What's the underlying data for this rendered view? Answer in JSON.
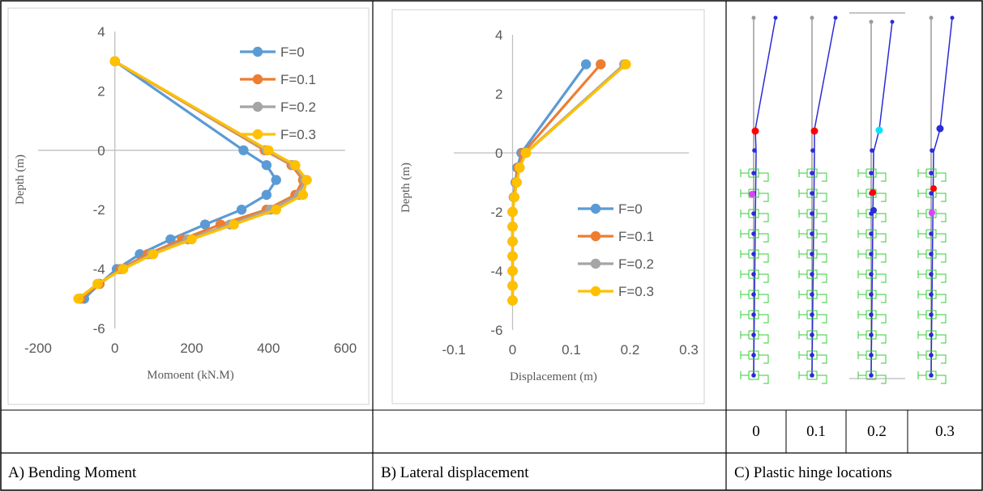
{
  "captions": {
    "a": "A) Bending Moment",
    "b": "B) Lateral displacement",
    "c": "C) Plastic hinge locations"
  },
  "hinge_panel": {
    "labels": [
      "0",
      "0.1",
      "0.2",
      "0.3"
    ]
  },
  "colors": {
    "series": [
      "#5b9bd5",
      "#ed7d31",
      "#a5a5a5",
      "#ffc000"
    ],
    "pile": "#2b2bd8",
    "gray_pile": "#9a9a9a",
    "hinge_red": "#ff0000",
    "hinge_cyan": "#00e5ff",
    "hinge_magenta": "#e040fb",
    "spring_green": "#33cc33"
  },
  "chart_data": [
    {
      "type": "line",
      "title": "",
      "xlabel": "Momoent (kN.M)",
      "ylabel": "Depth (m)",
      "xlim": [
        -200,
        600
      ],
      "ylim": [
        -6,
        4
      ],
      "xticks": [
        "-200",
        "0",
        "200",
        "400",
        "600"
      ],
      "yticks": [
        "4",
        "2",
        "0",
        "-2",
        "-4",
        "-6"
      ],
      "legend_position": "top-right",
      "grid": false,
      "series": [
        {
          "name": "F=0",
          "x": [
            0,
            335,
            395,
            420,
            395,
            330,
            235,
            145,
            65,
            5,
            -40,
            -80
          ],
          "y": [
            3,
            0,
            -0.5,
            -1,
            -1.5,
            -2,
            -2.5,
            -3,
            -3.5,
            -4,
            -4.5,
            -5
          ]
        },
        {
          "name": "F=0.1",
          "x": [
            0,
            390,
            460,
            490,
            470,
            395,
            275,
            175,
            85,
            15,
            -40,
            -90
          ],
          "y": [
            3,
            0,
            -0.5,
            -1,
            -1.5,
            -2,
            -2.5,
            -3,
            -3.5,
            -4,
            -4.5,
            -5
          ]
        },
        {
          "name": "F=0.2",
          "x": [
            0,
            395,
            465,
            495,
            480,
            405,
            300,
            190,
            95,
            20,
            -45,
            -95
          ],
          "y": [
            3,
            0,
            -0.5,
            -1,
            -1.5,
            -2,
            -2.5,
            -3,
            -3.5,
            -4,
            -4.5,
            -5
          ]
        },
        {
          "name": "F=0.3",
          "x": [
            0,
            400,
            470,
            500,
            490,
            420,
            310,
            200,
            100,
            22,
            -45,
            -95
          ],
          "y": [
            3,
            0,
            -0.5,
            -1,
            -1.5,
            -2,
            -2.5,
            -3,
            -3.5,
            -4,
            -4.5,
            -5
          ]
        }
      ]
    },
    {
      "type": "line",
      "title": "",
      "xlabel": "Displacement (m)",
      "ylabel": "Depth (m)",
      "xlim": [
        -0.1,
        0.3
      ],
      "ylim": [
        -6,
        4
      ],
      "xticks": [
        "-0.1",
        "0",
        "0.1",
        "0.2",
        "0.3"
      ],
      "yticks": [
        "4",
        "2",
        "0",
        "-2",
        "-4",
        "-6"
      ],
      "legend_position": "center-right",
      "grid": false,
      "series": [
        {
          "name": "F=0",
          "x": [
            0.125,
            0.015,
            0.008,
            0.005,
            0.002,
            0,
            0,
            0,
            0,
            0,
            0,
            0
          ],
          "y": [
            3,
            0,
            -0.5,
            -1,
            -1.5,
            -2,
            -2.5,
            -3,
            -3.5,
            -4,
            -4.5,
            -5
          ]
        },
        {
          "name": "F=0.1",
          "x": [
            0.15,
            0.018,
            0.01,
            0.006,
            0.003,
            0,
            0,
            0,
            0,
            0,
            0,
            0
          ],
          "y": [
            3,
            0,
            -0.5,
            -1,
            -1.5,
            -2,
            -2.5,
            -3,
            -3.5,
            -4,
            -4.5,
            -5
          ]
        },
        {
          "name": "F=0.2",
          "x": [
            0.19,
            0.022,
            0.012,
            0.007,
            0.003,
            0,
            0,
            0,
            0,
            0,
            0,
            0
          ],
          "y": [
            3,
            0,
            -0.5,
            -1,
            -1.5,
            -2,
            -2.5,
            -3,
            -3.5,
            -4,
            -4.5,
            -5
          ]
        },
        {
          "name": "F=0.3",
          "x": [
            0.193,
            0.023,
            0.012,
            0.007,
            0.003,
            0,
            0,
            0,
            0,
            0,
            0,
            0
          ],
          "y": [
            3,
            0,
            -0.5,
            -1,
            -1.5,
            -2,
            -2.5,
            -3,
            -3.5,
            -4,
            -4.5,
            -5
          ]
        }
      ]
    }
  ]
}
